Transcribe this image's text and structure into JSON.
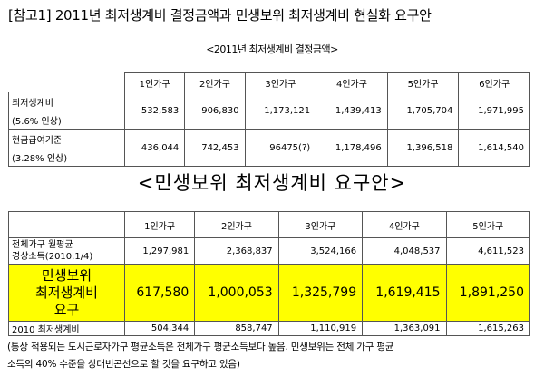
{
  "document_title": "[참고1] 2011년 최저생계비 결정금액과 민생보위 최저생계비 현실화 요구안",
  "table1": {
    "caption": "<2011년 최저생계비 결정금액>",
    "headers": [
      "",
      "1인가구",
      "2인가구",
      "3인가구",
      "4인가구",
      "5인가구",
      "6인가구"
    ],
    "rows": [
      {
        "label": "최저생계비",
        "note": "(5.6% 인상)",
        "values": [
          "532,583",
          "906,830",
          "1,173,121",
          "1,439,413",
          "1,705,704",
          "1,971,995"
        ]
      },
      {
        "label": "현금급여기준",
        "note": "(3.28% 인상)",
        "values": [
          "436,044",
          "742,453",
          "96475(?)",
          "1,178,496",
          "1,396,518",
          "1,614,540"
        ]
      }
    ]
  },
  "table2": {
    "caption": "<민생보위 최저생계비 요구안>",
    "headers": [
      "",
      "1인가구",
      "2인가구",
      "3인가구",
      "4인가구",
      "5인가구"
    ],
    "income_row": {
      "label_line1": "전체가구 월평균",
      "label_line2": "경상소득(2010.1/4)",
      "values": [
        "1,297,981",
        "2,368,837",
        "3,524,166",
        "4,048,537",
        "4,611,523"
      ]
    },
    "demand_row": {
      "label_line1": "민생보위",
      "label_line2": "최저생계비",
      "label_line3": "요구",
      "values": [
        "617,580",
        "1,000,053",
        "1,325,799",
        "1,619,415",
        "1,891,250"
      ]
    },
    "row_2010": {
      "label": "2010 최저생계비",
      "values": [
        "504,344",
        "858,747",
        "1,110,919",
        "1,363,091",
        "1,615,263"
      ]
    },
    "highlight_color": "#ffff00"
  },
  "footnote": {
    "line1": "(통상 적용되는 도시근로자가구 평균소득은 전체가구 평균소득보다 높음. 민생보위는 전체 가구 평균",
    "line2": "소득의 40% 수준을 상대빈곤선으로 할 것을 요구하고 있음)"
  }
}
